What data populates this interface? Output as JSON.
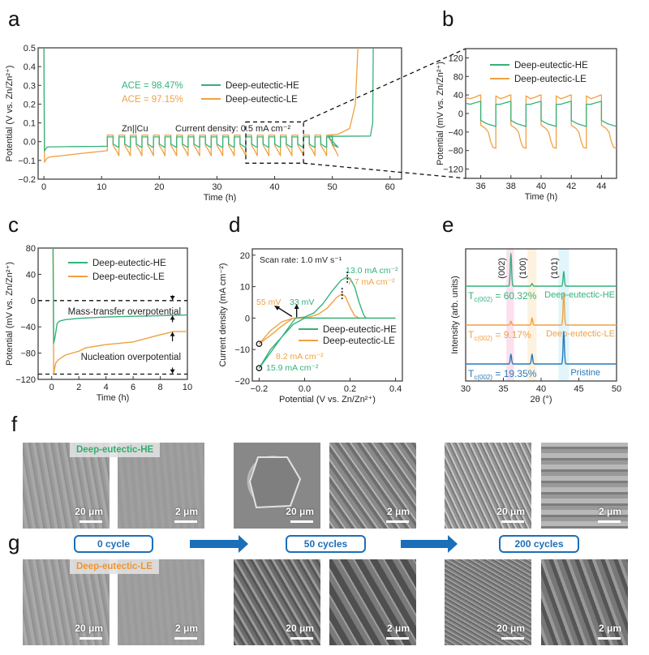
{
  "colors": {
    "he": "#34b27b",
    "le": "#f0a142",
    "pristine": "#2a79b8",
    "accent": "#1b6fb8"
  },
  "panel_letters": [
    "a",
    "b",
    "c",
    "d",
    "e",
    "f",
    "g"
  ],
  "chart_data": [
    {
      "id": "a",
      "type": "line",
      "xlabel": "Time (h)",
      "ylabel": "Potential (V vs. Zn/Zn²⁺)",
      "xlim": [
        -1,
        62
      ],
      "ylim": [
        -0.2,
        0.5
      ],
      "xticks": [
        0,
        10,
        20,
        30,
        40,
        50,
        60
      ],
      "yticks": [
        -0.2,
        -0.1,
        0.0,
        0.1,
        0.2,
        0.3,
        0.4,
        0.5
      ],
      "ytick_labels": [
        "−0.2",
        "−0.1",
        "0.0",
        "0.1",
        "0.2",
        "0.3",
        "0.4",
        "0.5"
      ],
      "annotations": {
        "ace_he": "ACE = 98.47%",
        "ace_le": "ACE = 97.15%",
        "cell": "Zn||Cu",
        "current_density": "Current density: 0.5 mA cm⁻²"
      },
      "zoom_box": {
        "x": [
          35,
          45
        ],
        "y": [
          -0.115,
          0.105
        ]
      },
      "series": [
        {
          "name": "Deep-eutectic-HE",
          "color_key": "he",
          "plating_potential": -0.025,
          "cycle_high": 0.025,
          "cycle_low": -0.03,
          "cycles_end": 49.2,
          "final_plateau": 0.03,
          "final_rise": 57
        },
        {
          "name": "Deep-eutectic-LE",
          "color_key": "le",
          "plating_potential_start": -0.105,
          "plating_potential_end": -0.05,
          "cycle_high": 0.035,
          "cycle_low": -0.075,
          "cycles_end": 49.2,
          "final_rise": 54.4
        }
      ],
      "cycle_start": 11,
      "cycle_period": 2
    },
    {
      "id": "b",
      "type": "line",
      "xlabel": "Time (h)",
      "ylabel": "Potential (mV vs. Zn/Zn²⁺)",
      "xlim": [
        35,
        45
      ],
      "ylim": [
        -140,
        140
      ],
      "xticks": [
        36,
        38,
        40,
        42,
        44
      ],
      "yticks": [
        -120,
        -80,
        -40,
        0,
        40,
        80,
        120
      ],
      "ytick_labels": [
        "−120",
        "−80",
        "−40",
        "0",
        "40",
        "80",
        "120"
      ],
      "series": [
        {
          "name": "Deep-eutectic-HE",
          "color_key": "he",
          "strip_mV": [
            20,
            26
          ],
          "plate_mV": [
            -15,
            -28
          ]
        },
        {
          "name": "Deep-eutectic-LE",
          "color_key": "le",
          "strip_mV": [
            32,
            40
          ],
          "plate_mV": [
            -25,
            -75
          ]
        }
      ],
      "cycle_starts": [
        35,
        37,
        39,
        41,
        43
      ]
    },
    {
      "id": "c",
      "type": "line",
      "xlabel": "Time (h)",
      "ylabel": "Potential (mV vs. Zn/Zn²⁺)",
      "xlim": [
        -1,
        10
      ],
      "ylim": [
        -120,
        80
      ],
      "xticks": [
        0,
        2,
        4,
        6,
        8,
        10
      ],
      "yticks": [
        -120,
        -80,
        -40,
        0,
        40,
        80
      ],
      "ytick_labels": [
        "−120",
        "−80",
        "−40",
        "0",
        "40",
        "80"
      ],
      "annotations": {
        "mass_transfer": "Mass-transfer overpotential",
        "nucleation": "Nucleation overpotential"
      },
      "reference_lines_mV": [
        0,
        -112
      ],
      "series": [
        {
          "name": "Deep-eutectic-HE",
          "color_key": "he",
          "x": [
            0.1,
            0.15,
            0.25,
            0.4,
            0.6,
            1,
            2,
            4,
            6,
            8,
            10
          ],
          "y": [
            80,
            -65,
            -55,
            -35,
            -31,
            -29,
            -27,
            -25,
            -24,
            -23,
            -22
          ]
        },
        {
          "name": "Deep-eutectic-LE",
          "color_key": "le",
          "x": [
            0.1,
            0.15,
            0.2,
            0.3,
            0.5,
            1,
            2,
            2.5,
            4,
            6,
            8,
            9,
            10
          ],
          "y": [
            80,
            -112,
            -105,
            -95,
            -90,
            -83,
            -77,
            -72,
            -67,
            -63,
            -52,
            -47,
            -47
          ]
        }
      ]
    },
    {
      "id": "d",
      "type": "line",
      "xlabel": "Potential (V vs. Zn/Zn²⁺)",
      "ylabel": "Current density (mA cm⁻²)",
      "xlim": [
        -0.23,
        0.43
      ],
      "ylim": [
        -20,
        22
      ],
      "xticks": [
        -0.2,
        0.0,
        0.2,
        0.4
      ],
      "xtick_labels": [
        "−0.2",
        "0.0",
        "0.2",
        "0.4"
      ],
      "yticks": [
        -20,
        -10,
        0,
        10,
        20
      ],
      "ytick_labels": [
        "−20",
        "−10",
        "0",
        "10",
        "20"
      ],
      "annotations": {
        "scan_rate": "Scan rate: 1.0 mV s⁻¹",
        "peak_he": "13.0 mA cm⁻²",
        "peak_le": "7.7 mA cm⁻²",
        "onset_le": "55 mV",
        "onset_he": "33 mV",
        "min_le": "8.2 mA cm⁻²",
        "min_he": "15.9 mA cm⁻²"
      },
      "series": [
        {
          "name": "Deep-eutectic-HE",
          "color_key": "he",
          "x": [
            0.4,
            0.27,
            0.26,
            0.24,
            0.22,
            0.2,
            0.185,
            0.16,
            0.12,
            0.08,
            0.04,
            0.0,
            -0.04,
            -0.08,
            -0.12,
            -0.16,
            -0.2,
            -0.15,
            -0.1,
            -0.05,
            0.0,
            0.1,
            0.2,
            0.4
          ],
          "y": [
            0,
            0,
            1,
            5,
            10,
            12.6,
            13.0,
            12,
            8.5,
            4.5,
            1.6,
            0.3,
            0,
            -4,
            -8,
            -12,
            -15.9,
            -10,
            -6,
            -2,
            0,
            0,
            0,
            0
          ]
        },
        {
          "name": "Deep-eutectic-LE",
          "color_key": "le",
          "x": [
            0.4,
            0.24,
            0.22,
            0.2,
            0.18,
            0.165,
            0.14,
            0.1,
            0.06,
            0.02,
            0.0,
            -0.05,
            -0.1,
            -0.15,
            -0.2,
            -0.15,
            -0.1,
            -0.05,
            0.0,
            0.4
          ],
          "y": [
            0,
            0,
            0.8,
            3.5,
            6.8,
            7.7,
            6.5,
            3.2,
            1.2,
            0.3,
            0,
            0,
            -2.5,
            -5.5,
            -8.2,
            -4,
            -1.2,
            0,
            0,
            0
          ]
        }
      ]
    },
    {
      "id": "e",
      "type": "line",
      "xlabel": "2θ (°)",
      "ylabel": "Intensity (arb. units)",
      "xlim": [
        30,
        50
      ],
      "xticks": [
        30,
        35,
        40,
        45,
        50
      ],
      "peaks_labels": [
        "(002)",
        "(100)",
        "(101)"
      ],
      "peak_positions_deg": [
        36.0,
        38.8,
        43.0
      ],
      "series": [
        {
          "name": "Deep-eutectic-HE",
          "color_key": "he",
          "tc_label": "T",
          "tc_sub": "c(002)",
          "tc_value": " = 60.32%",
          "peak_heights": [
            1.0,
            0.08,
            0.45
          ]
        },
        {
          "name": "Deep-eutectic-LE",
          "color_key": "le",
          "tc_label": "T",
          "tc_sub": "c(002)",
          "tc_value": " = 9.17%",
          "peak_heights": [
            0.12,
            0.22,
            1.0
          ]
        },
        {
          "name": "Pristine",
          "color_key": "pristine",
          "tc_label": "T",
          "tc_sub": "c(002)",
          "tc_value": " = 19.35%",
          "peak_heights": [
            0.3,
            0.3,
            1.0
          ]
        }
      ]
    }
  ],
  "sem": {
    "he_tag": "Deep-eutectic-HE",
    "le_tag": "Deep-eutectic-LE",
    "cycles": [
      "0 cycle",
      "50 cycles",
      "200 cycles"
    ],
    "scale_labels": [
      "20 μm",
      "2 μm",
      "20 μm",
      "2 μm",
      "20 μm",
      "2 μm"
    ]
  }
}
